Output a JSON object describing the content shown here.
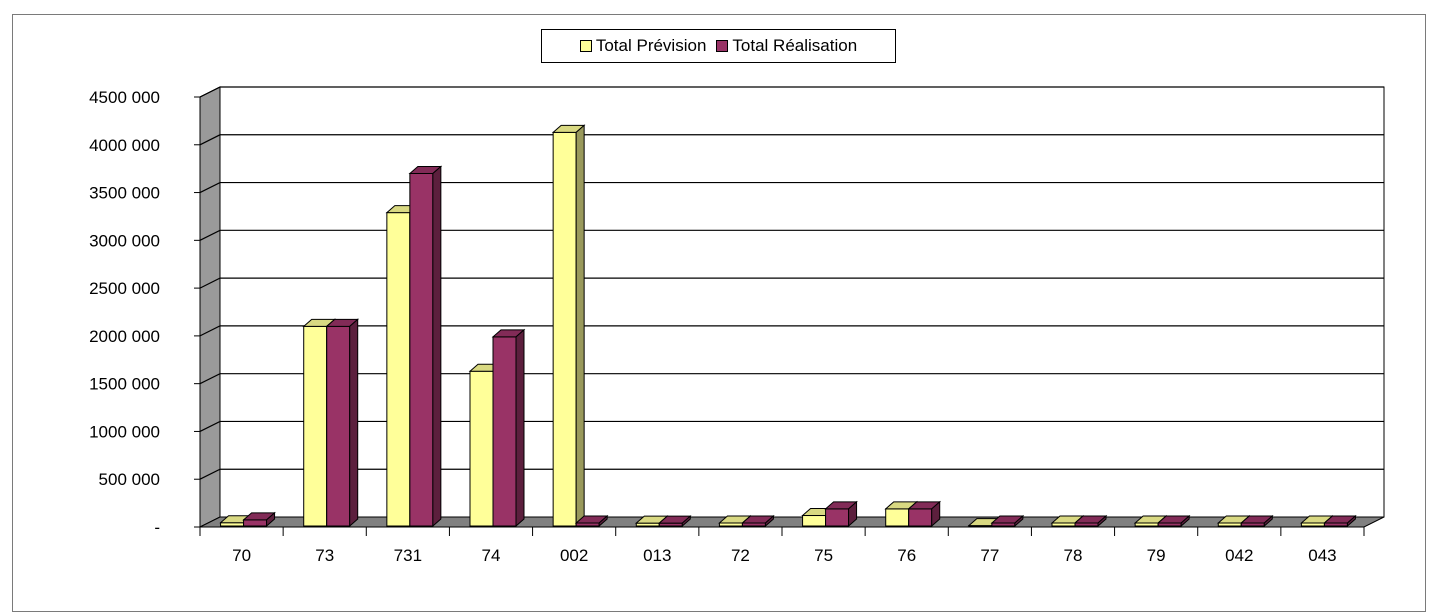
{
  "chart_data": {
    "type": "bar",
    "categories": [
      "70",
      "73",
      "731",
      "74",
      "002",
      "013",
      "72",
      "75",
      "76",
      "77",
      "78",
      "79",
      "042",
      "043"
    ],
    "series": [
      {
        "name": "Total Prévision",
        "color": "#ffff99",
        "values": [
          45000,
          2100000,
          3290000,
          1630000,
          4130000,
          40000,
          0,
          120000,
          190000,
          15000,
          0,
          0,
          0,
          0
        ]
      },
      {
        "name": "Total Réalisation",
        "color": "#993366",
        "values": [
          75000,
          2100000,
          3700000,
          1990000,
          0,
          40000,
          0,
          190000,
          190000,
          0,
          0,
          0,
          0,
          0
        ]
      }
    ],
    "yticks": [
      "-",
      "500 000",
      "1000 000",
      "1500 000",
      "2000 000",
      "2500 000",
      "3000 000",
      "3500 000",
      "4000 000",
      "4500 000"
    ],
    "ylim": [
      0,
      4500000
    ],
    "grid": true,
    "legend_position": "top-center",
    "title": "",
    "xlabel": "",
    "ylabel": ""
  }
}
